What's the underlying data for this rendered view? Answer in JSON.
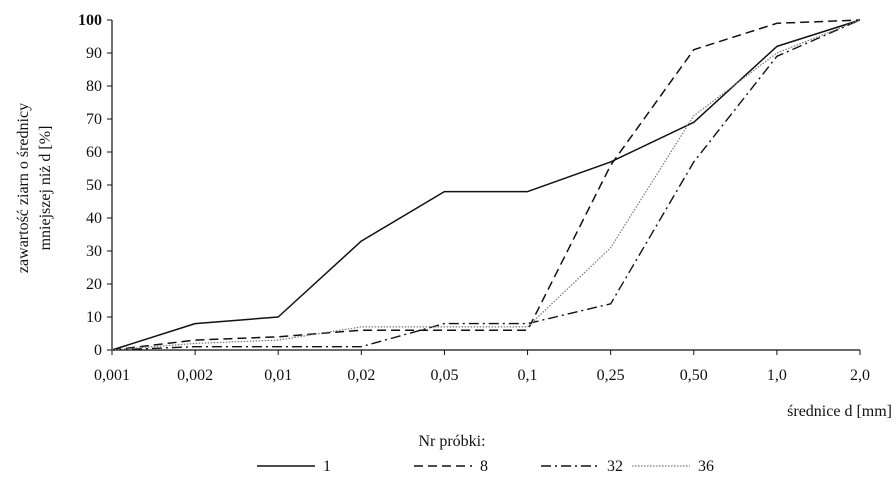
{
  "chart_data": {
    "type": "line",
    "categories": [
      "0,001",
      "0,002",
      "0,01",
      "0,02",
      "0,05",
      "0,1",
      "0,25",
      "0,50",
      "1,0",
      "2,0"
    ],
    "xlabel": "średnice d [mm]",
    "ylabel_line1": "zawartość ziarn o średnicy",
    "ylabel_line2": "mniejszej niż d [%]",
    "ylim": [
      0,
      100
    ],
    "yticks": [
      0,
      10,
      20,
      30,
      40,
      50,
      60,
      70,
      80,
      90,
      100
    ],
    "grid": false,
    "legend_title": "Nr próbki:",
    "legend_position": "bottom",
    "series": [
      {
        "name": "1",
        "style": "solid",
        "color": "#111111",
        "values": [
          0,
          8,
          10,
          33,
          48,
          48,
          57,
          69,
          92,
          100
        ]
      },
      {
        "name": "8",
        "style": "dashed",
        "color": "#111111",
        "values": [
          0,
          3,
          4,
          6,
          6,
          6,
          56,
          91,
          99,
          100
        ]
      },
      {
        "name": "32",
        "style": "dashdot",
        "color": "#111111",
        "values": [
          0,
          1,
          1,
          1,
          8,
          8,
          14,
          57,
          89,
          100
        ]
      },
      {
        "name": "36",
        "style": "dotted",
        "color": "#777777",
        "values": [
          0,
          2,
          3,
          7,
          7,
          7,
          31,
          71,
          90,
          100
        ]
      }
    ]
  }
}
